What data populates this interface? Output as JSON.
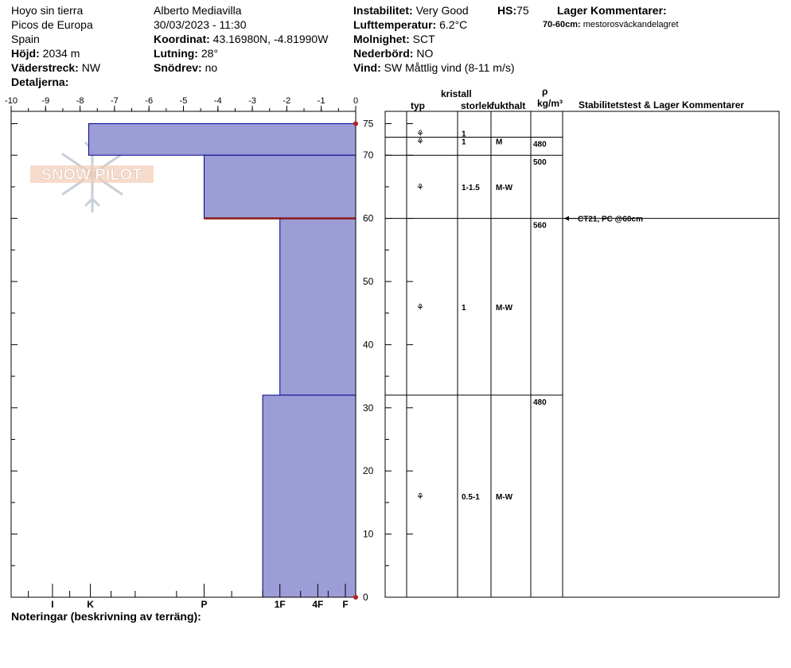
{
  "header": {
    "col1": [
      "Hoyo sin tierra",
      "Picos de Europa",
      "Spain"
    ],
    "hojd_label": "Höjd:",
    "hojd_value": "2034 m",
    "vaderstreck_label": "Väderstreck:",
    "vaderstreck_value": "NW",
    "detaljer_label": "Detaljerna:",
    "observer": "Alberto Mediavilla",
    "datetime": "30/03/2023 - 11:30",
    "koordinat_label": "Koordinat:",
    "koordinat_value": "43.16980N, -4.81990W",
    "lutning_label": "Lutning:",
    "lutning_value": "28°",
    "snodrev_label": "Snödrev:",
    "snodrev_value": "no",
    "instabilitet_label": "Instabilitet:",
    "instabilitet_value": "Very Good",
    "hs_label": "HS:",
    "hs_value": "75",
    "lufttemp_label": "Lufttemperatur:",
    "lufttemp_value": "6.2°C",
    "molnighet_label": "Molnighet:",
    "molnighet_value": "SCT",
    "nederbord_label": "Nederbörd:",
    "nederbord_value": "NO",
    "vind_label": "Vind:",
    "vind_value": "SW  Måttlig vind (8-11 m/s)",
    "lager_label": "Lager Kommentarer:",
    "lager_comment_label": "70-60cm:",
    "lager_comment_value": "mestorosväckandelagret"
  },
  "logo_text": "SNOW PILOT",
  "footer_label": "Noteringar (beskrivning av terräng):",
  "columns": {
    "kristall": "kristall",
    "typ": "typ",
    "storlek": "storlek",
    "fukthalt": "fukthalt",
    "rho": "ρ",
    "density_unit": "kg/m³",
    "stab": "Stabilitetstest & Lager Kommentarer"
  },
  "colors": {
    "fill": "#9c9cd6",
    "edge": "#00008b",
    "weak": "#8b1a1a",
    "marker": "#b22222"
  },
  "chart_data": {
    "type": "bar",
    "top_axis": {
      "ticks": [
        -10,
        -9,
        -8,
        -7,
        -6,
        -5,
        -4,
        -3,
        -2,
        -1,
        0
      ]
    },
    "bottom_axis": {
      "labels": [
        "I",
        "K",
        "P",
        "1F",
        "4F",
        "F"
      ],
      "values": [
        -8.8,
        -7.7,
        -4.4,
        -2.2,
        -1.1,
        -0.3
      ]
    },
    "y_axis": {
      "ticks": [
        0,
        10,
        20,
        30,
        40,
        50,
        60,
        70,
        75
      ],
      "ylim": [
        0,
        75
      ]
    },
    "layers": [
      {
        "top": 75,
        "bottom": 70,
        "hardness": -7.75
      },
      {
        "top": 70,
        "bottom": 60,
        "hardness": -4.4
      },
      {
        "top": 60,
        "bottom": 32,
        "hardness": -2.2
      },
      {
        "top": 32,
        "bottom": 0,
        "hardness": -2.7
      }
    ],
    "weak_layer_depth": 60
  },
  "layer_rows": [
    {
      "size": "1",
      "moisture": "",
      "density": "",
      "y": 73.5
    },
    {
      "size": "1",
      "moisture": "M",
      "density": "480",
      "y": 72.2
    },
    {
      "size": "1-1.5",
      "moisture": "M-W",
      "density": "500",
      "y": 65
    },
    {
      "size": "1",
      "moisture": "M-W",
      "density": "560",
      "y": 46
    },
    {
      "size": "0.5-1",
      "moisture": "M-W",
      "density": "480",
      "y": 16
    }
  ],
  "stability_test": {
    "text": "CT21, PC @60cm",
    "depth": 60
  }
}
